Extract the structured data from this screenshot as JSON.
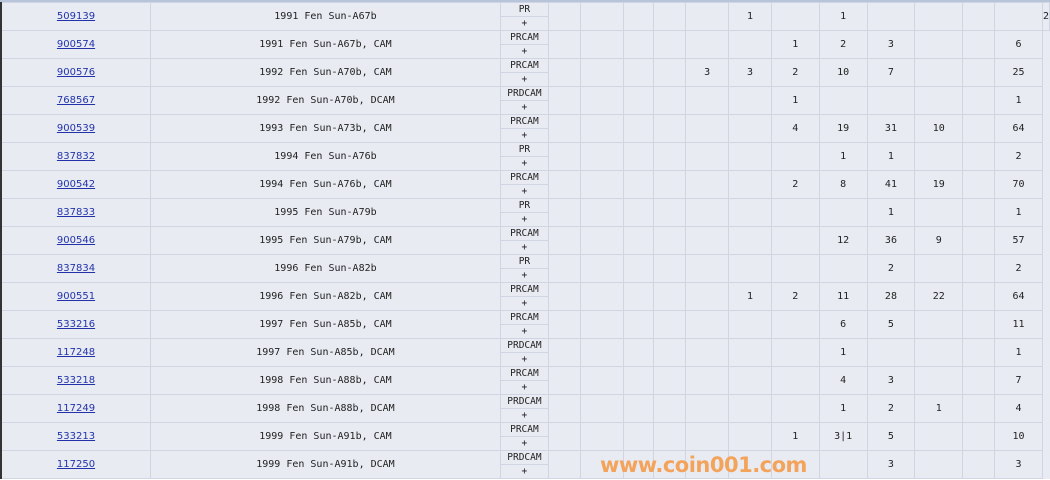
{
  "rows": [
    {
      "id": "509139",
      "desc": "1991 Fen Sun-A67b",
      "type": "PR",
      "plus": "+",
      "cells": [
        "",
        "",
        "",
        "",
        "",
        "1",
        "",
        "1",
        "",
        "",
        "",
        ""
      ],
      "total": "2"
    },
    {
      "id": "900574",
      "desc": "1991 Fen Sun-A67b, CAM",
      "type": "PRCAM",
      "plus": "+",
      "cells": [
        "",
        "",
        "",
        "",
        "",
        "",
        "1",
        "2",
        "3",
        "",
        ""
      ],
      "total": "6"
    },
    {
      "id": "900576",
      "desc": "1992 Fen Sun-A70b, CAM",
      "type": "PRCAM",
      "plus": "+",
      "cells": [
        "",
        "",
        "",
        "",
        "3",
        "3",
        "2",
        "10",
        "7",
        "",
        ""
      ],
      "total": "25"
    },
    {
      "id": "768567",
      "desc": "1992 Fen Sun-A70b, DCAM",
      "type": "PRDCAM",
      "plus": "+",
      "cells": [
        "",
        "",
        "",
        "",
        "",
        "",
        "1",
        "",
        "",
        "",
        ""
      ],
      "total": "1"
    },
    {
      "id": "900539",
      "desc": "1993 Fen Sun-A73b, CAM",
      "type": "PRCAM",
      "plus": "+",
      "cells": [
        "",
        "",
        "",
        "",
        "",
        "",
        "4",
        "19",
        "31",
        "10",
        ""
      ],
      "total": "64"
    },
    {
      "id": "837832",
      "desc": "1994 Fen Sun-A76b",
      "type": "PR",
      "plus": "+",
      "cells": [
        "",
        "",
        "",
        "",
        "",
        "",
        "",
        "1",
        "1",
        "",
        ""
      ],
      "total": "2"
    },
    {
      "id": "900542",
      "desc": "1994 Fen Sun-A76b, CAM",
      "type": "PRCAM",
      "plus": "+",
      "cells": [
        "",
        "",
        "",
        "",
        "",
        "",
        "2",
        "8",
        "41",
        "19",
        ""
      ],
      "total": "70"
    },
    {
      "id": "837833",
      "desc": "1995 Fen Sun-A79b",
      "type": "PR",
      "plus": "+",
      "cells": [
        "",
        "",
        "",
        "",
        "",
        "",
        "",
        "",
        "1",
        "",
        ""
      ],
      "total": "1"
    },
    {
      "id": "900546",
      "desc": "1995 Fen Sun-A79b, CAM",
      "type": "PRCAM",
      "plus": "+",
      "cells": [
        "",
        "",
        "",
        "",
        "",
        "",
        "",
        "12",
        "36",
        "9",
        ""
      ],
      "total": "57"
    },
    {
      "id": "837834",
      "desc": "1996 Fen Sun-A82b",
      "type": "PR",
      "plus": "+",
      "cells": [
        "",
        "",
        "",
        "",
        "",
        "",
        "",
        "",
        "2",
        "",
        ""
      ],
      "total": "2"
    },
    {
      "id": "900551",
      "desc": "1996 Fen Sun-A82b, CAM",
      "type": "PRCAM",
      "plus": "+",
      "cells": [
        "",
        "",
        "",
        "",
        "",
        "1",
        "2",
        "11",
        "28",
        "22",
        ""
      ],
      "total": "64"
    },
    {
      "id": "533216",
      "desc": "1997 Fen Sun-A85b, CAM",
      "type": "PRCAM",
      "plus": "+",
      "cells": [
        "",
        "",
        "",
        "",
        "",
        "",
        "",
        "6",
        "5",
        "",
        ""
      ],
      "total": "11"
    },
    {
      "id": "117248",
      "desc": "1997 Fen Sun-A85b, DCAM",
      "type": "PRDCAM",
      "plus": "+",
      "cells": [
        "",
        "",
        "",
        "",
        "",
        "",
        "",
        "1",
        "",
        "",
        ""
      ],
      "total": "1"
    },
    {
      "id": "533218",
      "desc": "1998 Fen Sun-A88b, CAM",
      "type": "PRCAM",
      "plus": "+",
      "cells": [
        "",
        "",
        "",
        "",
        "",
        "",
        "",
        "4",
        "3",
        "",
        ""
      ],
      "total": "7"
    },
    {
      "id": "117249",
      "desc": "1998 Fen Sun-A88b, DCAM",
      "type": "PRDCAM",
      "plus": "+",
      "cells": [
        "",
        "",
        "",
        "",
        "",
        "",
        "",
        "1",
        "2",
        "1",
        ""
      ],
      "total": "4"
    },
    {
      "id": "533213",
      "desc": "1999 Fen Sun-A91b, CAM",
      "type": "PRCAM",
      "plus": "+",
      "cells": [
        "",
        "",
        "",
        "",
        "",
        "",
        "1",
        "3|1",
        "5",
        "",
        ""
      ],
      "total": "10"
    },
    {
      "id": "117250",
      "desc": "1999 Fen Sun-A91b, DCAM",
      "type": "PRDCAM",
      "plus": "+",
      "cells": [
        "",
        "",
        "",
        "",
        "",
        "",
        "",
        "",
        "3",
        "",
        ""
      ],
      "total": "3"
    }
  ],
  "watermark": "www.coin001.com"
}
